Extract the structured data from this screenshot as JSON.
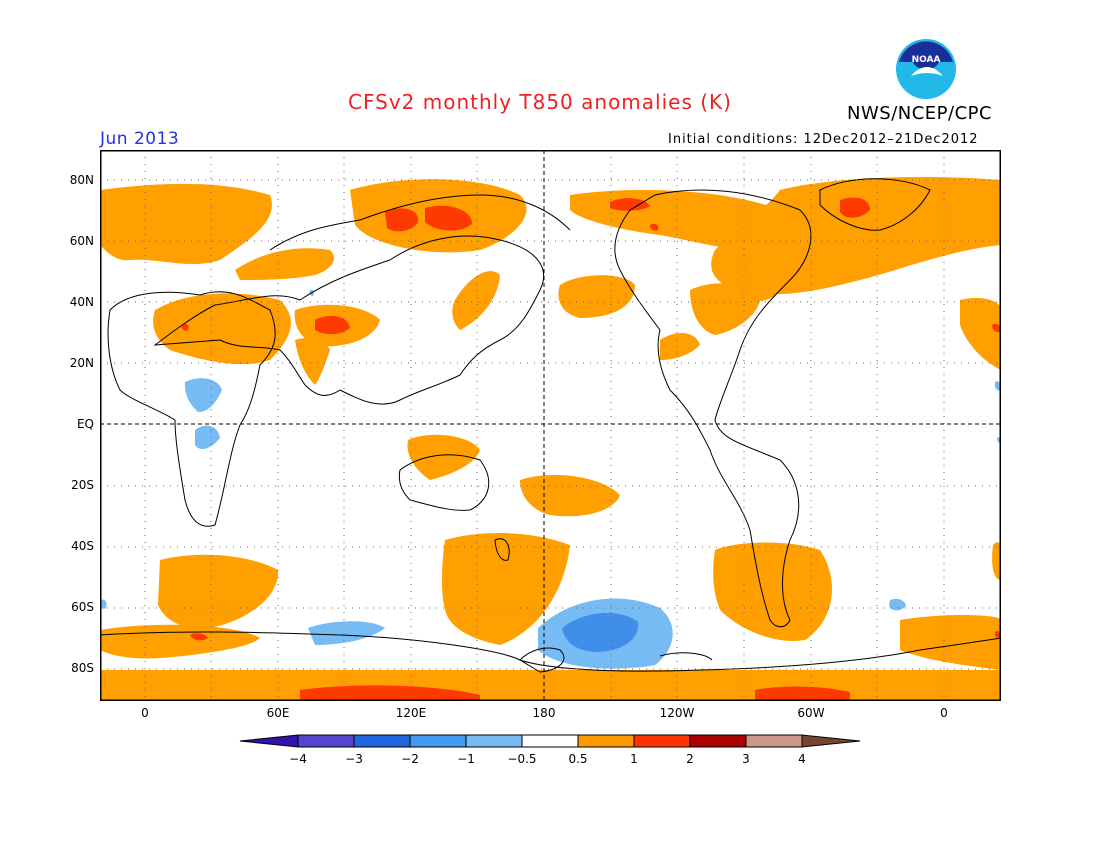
{
  "header": {
    "title": "CFSv2 monthly T850 anomalies (K)",
    "agency": "NWS/NCEP/CPC",
    "logo_text": "NOAA",
    "month": "Jun 2013",
    "initial_conditions": "Initial conditions: 12Dec2012–21Dec2012"
  },
  "map": {
    "projection": "cylindrical equidistant",
    "lat_labels": [
      "80N",
      "60N",
      "40N",
      "20N",
      "EQ",
      "20S",
      "40S",
      "60S",
      "80S"
    ],
    "lon_labels": [
      "0",
      "60E",
      "120E",
      "180",
      "120W",
      "60W",
      "0"
    ],
    "reference_lines": [
      "equator (dashed)",
      "180 meridian (dashed)"
    ],
    "dotted_grid": true,
    "variable": "850 hPa temperature anomaly",
    "units": "K"
  },
  "colorbar": {
    "labels": [
      "−4",
      "−3",
      "−2",
      "−1",
      "−0.5",
      "0.5",
      "1",
      "2",
      "3",
      "4"
    ],
    "colors": [
      "#3311aa",
      "#5544cc",
      "#2266dd",
      "#4499ee",
      "#77bbf5",
      "#ffffff",
      "#ff9900",
      "#ff3300",
      "#aa0000",
      "#cc9988",
      "#774433"
    ]
  },
  "colors": {
    "warm_1": "#ff9f00",
    "warm_2": "#ff3a00",
    "cool_1": "#77bbf5",
    "cool_2": "#3f8eea",
    "title": "#ee2222",
    "month": "#2233dd"
  }
}
